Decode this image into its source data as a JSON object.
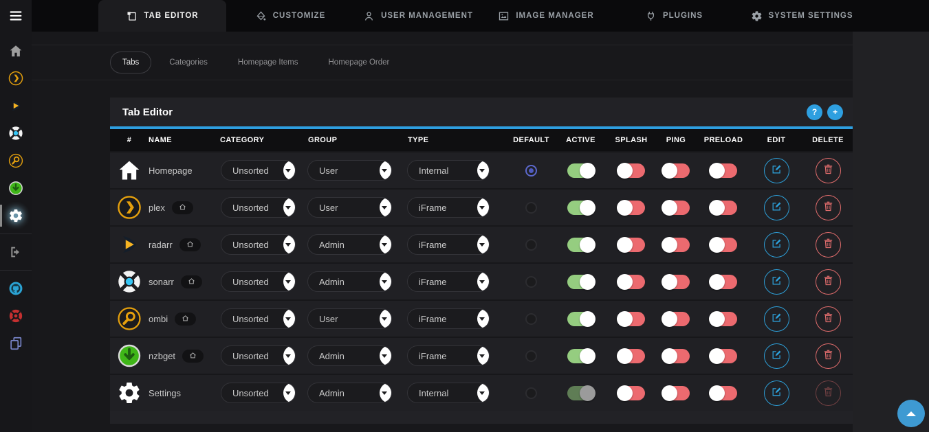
{
  "colors": {
    "accent_blue": "#2e9fe0",
    "toggle_on_green": "#95cd80",
    "toggle_off_red": "#ec6a6f",
    "delete_red": "#e06c6c",
    "radio_selected_indigo": "#5c68cc",
    "plex_amber": "#e5a00d",
    "nzbget_green": "#3fb618"
  },
  "top_nav": {
    "tabs": [
      {
        "label": "TAB EDITOR",
        "icon": "tab-editor-icon",
        "active": true
      },
      {
        "label": "CUSTOMIZE",
        "icon": "customize-icon",
        "active": false
      },
      {
        "label": "USER MANAGEMENT",
        "icon": "user-management-icon",
        "active": false
      },
      {
        "label": "IMAGE MANAGER",
        "icon": "image-manager-icon",
        "active": false
      },
      {
        "label": "PLUGINS",
        "icon": "plugins-icon",
        "active": false
      },
      {
        "label": "SYSTEM SETTINGS",
        "icon": "system-settings-icon",
        "active": false
      }
    ]
  },
  "sidebar": {
    "items": [
      {
        "icon": "hamburger-icon",
        "kind": "burger"
      },
      {
        "icon": "home-icon"
      },
      {
        "icon": "plex-icon"
      },
      {
        "icon": "radarr-icon"
      },
      {
        "icon": "sonarr-icon"
      },
      {
        "icon": "ombi-icon"
      },
      {
        "icon": "nzbget-icon"
      },
      {
        "icon": "gear-icon",
        "active": true
      },
      {
        "icon": "logout-icon",
        "divider_before": true
      },
      {
        "icon": "github-icon",
        "divider_before": true
      },
      {
        "icon": "lifebuoy-icon"
      },
      {
        "icon": "docs-icon"
      }
    ]
  },
  "subtabs": [
    {
      "label": "Tabs",
      "active": true
    },
    {
      "label": "Categories",
      "active": false
    },
    {
      "label": "Homepage Items",
      "active": false
    },
    {
      "label": "Homepage Order",
      "active": false
    }
  ],
  "panel": {
    "title": "Tab Editor",
    "help_label": "?",
    "add_label": "+"
  },
  "table": {
    "headers": [
      "#",
      "NAME",
      "CATEGORY",
      "GROUP",
      "TYPE",
      "DEFAULT",
      "ACTIVE",
      "SPLASH",
      "PING",
      "PRELOAD",
      "EDIT",
      "DELETE"
    ],
    "rows": [
      {
        "name": "Homepage",
        "icon": "homepage-icon",
        "home_badge": false,
        "category": "Unsorted",
        "group": "User",
        "type": "Internal",
        "default": true,
        "active": "on",
        "splash": "off",
        "ping": "off",
        "preload": "off",
        "delete": "enabled"
      },
      {
        "name": "plex",
        "icon": "plex-icon",
        "home_badge": true,
        "category": "Unsorted",
        "group": "User",
        "type": "iFrame",
        "default": false,
        "active": "on",
        "splash": "off",
        "ping": "off",
        "preload": "off",
        "delete": "enabled"
      },
      {
        "name": "radarr",
        "icon": "radarr-icon",
        "home_badge": true,
        "category": "Unsorted",
        "group": "Admin",
        "type": "iFrame",
        "default": false,
        "active": "on",
        "splash": "off",
        "ping": "off",
        "preload": "off",
        "delete": "enabled"
      },
      {
        "name": "sonarr",
        "icon": "sonarr-icon",
        "home_badge": true,
        "category": "Unsorted",
        "group": "Admin",
        "type": "iFrame",
        "default": false,
        "active": "on",
        "splash": "off",
        "ping": "off",
        "preload": "off",
        "delete": "enabled"
      },
      {
        "name": "ombi",
        "icon": "ombi-icon",
        "home_badge": true,
        "category": "Unsorted",
        "group": "User",
        "type": "iFrame",
        "default": false,
        "active": "on",
        "splash": "off",
        "ping": "off",
        "preload": "off",
        "delete": "enabled"
      },
      {
        "name": "nzbget",
        "icon": "nzbget-icon",
        "home_badge": true,
        "category": "Unsorted",
        "group": "Admin",
        "type": "iFrame",
        "default": false,
        "active": "on",
        "splash": "off",
        "ping": "off",
        "preload": "off",
        "delete": "enabled"
      },
      {
        "name": "Settings",
        "icon": "gear-icon",
        "home_badge": false,
        "category": "Unsorted",
        "group": "Admin",
        "type": "Internal",
        "default": false,
        "active": "disabled-on",
        "splash": "off",
        "ping": "off",
        "preload": "off",
        "delete": "disabled"
      }
    ]
  }
}
